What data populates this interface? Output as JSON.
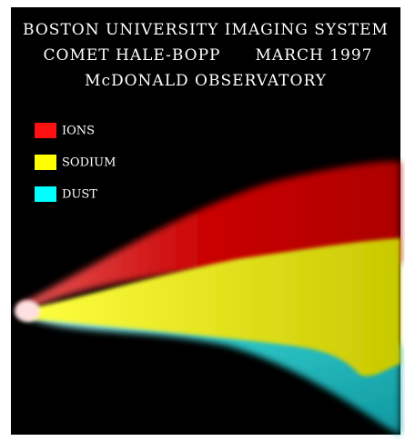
{
  "header": {
    "lines": [
      "BOSTON UNIVERSITY IMAGING SYSTEM",
      "COMET HALE-BOPP",
      "MARCH 1997",
      "McDONALD OBSERVATORY"
    ]
  },
  "legend": [
    {
      "label": "IONS",
      "color": "#ff1010"
    },
    {
      "label": "SODIUM",
      "color": "#ffff00"
    },
    {
      "label": "DUST",
      "color": "#00ffff"
    }
  ]
}
